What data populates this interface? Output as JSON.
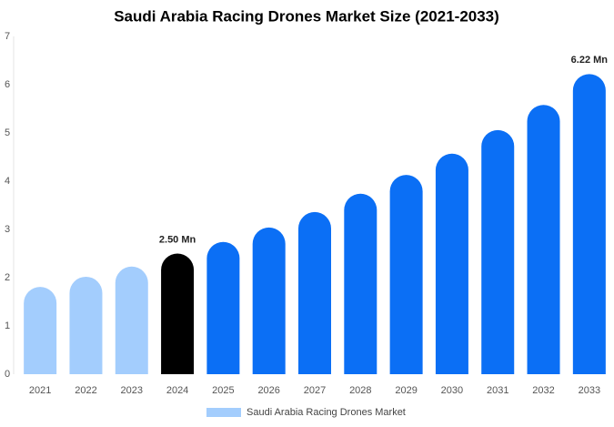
{
  "chart_data": {
    "type": "bar",
    "title": "Saudi Arabia Racing Drones Market Size (2021-2033)",
    "categories": [
      "2021",
      "2022",
      "2023",
      "2024",
      "2025",
      "2026",
      "2027",
      "2028",
      "2029",
      "2030",
      "2031",
      "2032",
      "2033"
    ],
    "series": [
      {
        "name": "Saudi Arabia Racing Drones Market",
        "color": "#a3cdfd",
        "values": [
          1.81,
          2.02,
          2.23,
          2.5,
          2.74,
          3.04,
          3.36,
          3.74,
          4.13,
          4.57,
          5.06,
          5.58,
          6.22
        ],
        "value_labels": [
          null,
          null,
          null,
          "2.50 Mn",
          null,
          null,
          null,
          null,
          null,
          null,
          null,
          null,
          "6.22 Mn"
        ],
        "colors": [
          "#a3cdfd",
          "#a3cdfd",
          "#a3cdfd",
          "#000000",
          "#0b6ff5",
          "#0b6ff5",
          "#0b6ff5",
          "#0b6ff5",
          "#0b6ff5",
          "#0b6ff5",
          "#0b6ff5",
          "#0b6ff5",
          "#0b6ff5"
        ]
      }
    ],
    "ylim": [
      0,
      7
    ],
    "yticks": [
      0,
      1,
      2,
      3,
      4,
      5,
      6,
      7
    ],
    "grid": false,
    "legend": "bottom"
  }
}
